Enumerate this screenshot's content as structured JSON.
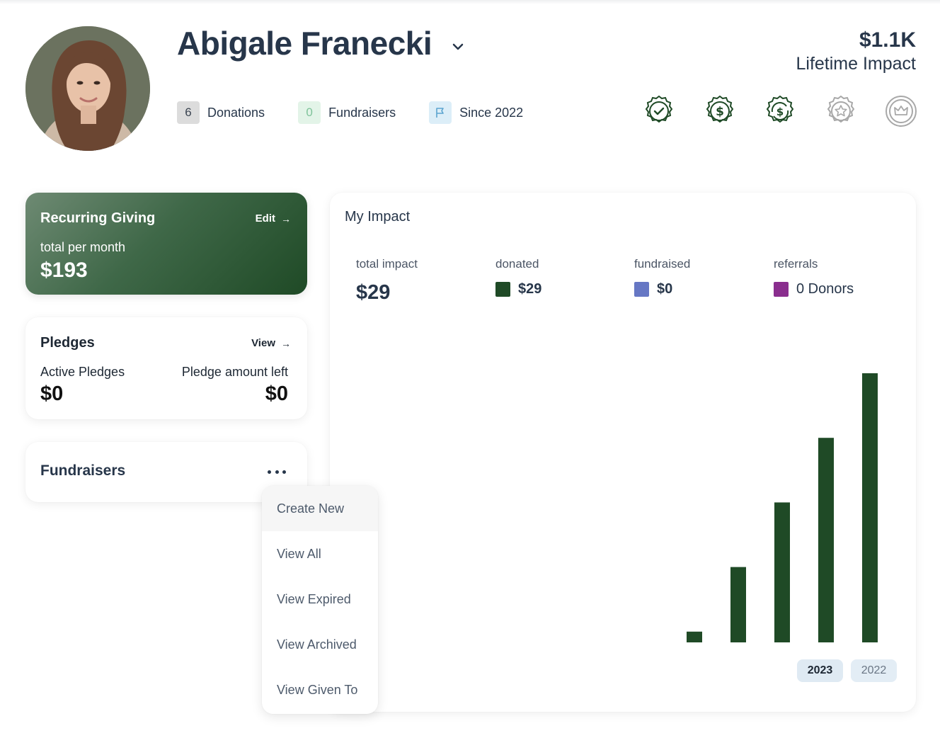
{
  "profile": {
    "name": "Abigale Franecki",
    "donations_count": "6",
    "donations_label": "Donations",
    "fundraisers_count": "0",
    "fundraisers_label": "Fundraisers",
    "since_label": "Since 2022",
    "lifetime_amount": "$1.1K",
    "lifetime_label": "Lifetime Impact"
  },
  "badges": [
    "check-badge-icon",
    "dollar-badge-icon",
    "recurring-dollar-badge-icon",
    "star-badge-icon",
    "crown-badge-icon"
  ],
  "recurring": {
    "title": "Recurring Giving",
    "edit_label": "Edit",
    "subtitle": "total per month",
    "amount": "$193"
  },
  "pledges": {
    "title": "Pledges",
    "view_label": "View",
    "active_label": "Active Pledges",
    "active_value": "$0",
    "left_label": "Pledge amount left",
    "left_value": "$0"
  },
  "fundraisers": {
    "title": "Fundraisers"
  },
  "fundraiser_menu": [
    "Create New",
    "View All",
    "View Expired",
    "View Archived",
    "View Given To"
  ],
  "impact": {
    "title": "My Impact",
    "total_label": "total impact",
    "total_value": "$29",
    "donated_label": "donated",
    "donated_value": "$29",
    "fundraised_label": "fundraised",
    "fundraised_value": "$0",
    "referrals_label": "referrals",
    "referrals_value": "0 Donors",
    "year_active": "2023",
    "year_other": "2022"
  },
  "colors": {
    "donated": "#1f4a26",
    "fundraised": "#6677c4",
    "referrals": "#8a2e8e"
  },
  "chart_data": {
    "type": "bar",
    "values": [
      2,
      14,
      26,
      38,
      50
    ],
    "note_units": "cumulative donated, relative bar heights"
  }
}
